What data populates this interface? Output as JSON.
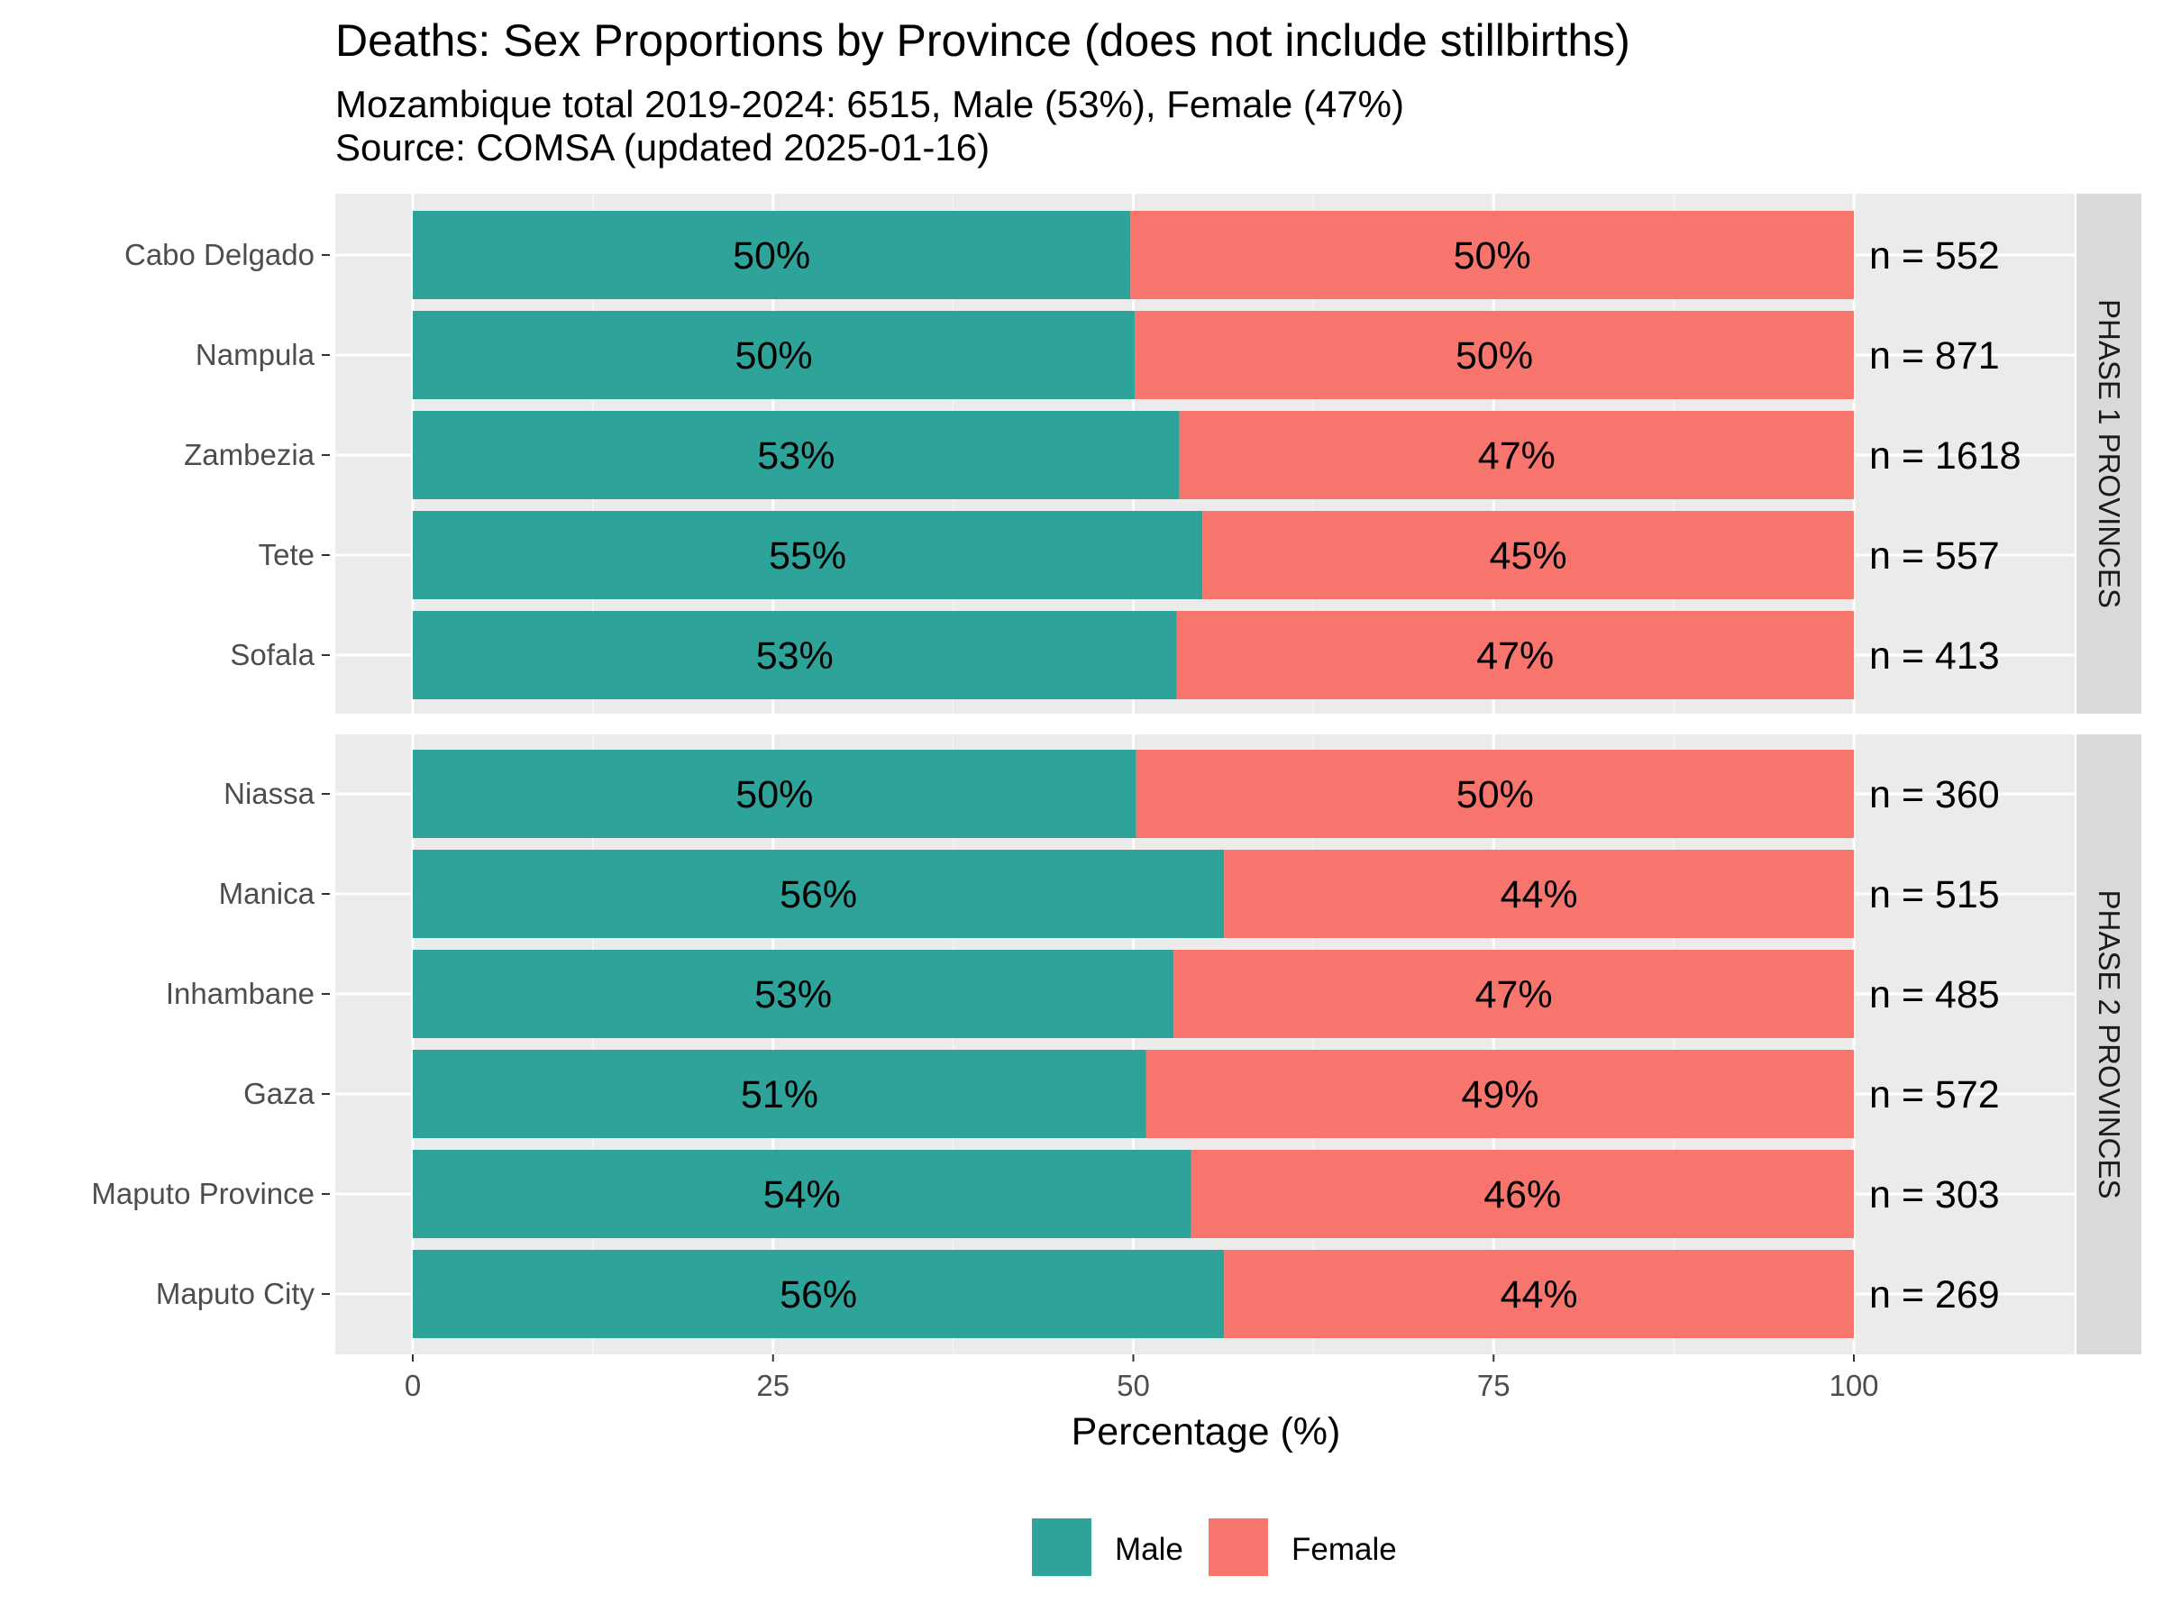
{
  "chart_data": {
    "type": "bar",
    "orientation": "horizontal",
    "stacked": true,
    "title": "Deaths: Sex Proportions by Province (does not include stillbirths)",
    "subtitle_lines": [
      "Mozambique total 2019-2024: 6515, Male (53%), Female (47%)",
      "Source: COMSA (updated 2025-01-16)"
    ],
    "xlabel": "Percentage (%)",
    "ylabel": "",
    "xlim": [
      0,
      100
    ],
    "xticks": [
      0,
      25,
      50,
      75,
      100
    ],
    "grid": true,
    "legend_position": "bottom",
    "colors": {
      "Male": "#2ea39a",
      "Female": "#f8756d"
    },
    "series_names": [
      "Male",
      "Female"
    ],
    "n_prefix": "n = ",
    "facets": [
      {
        "label": "PHASE  1  PROVINCES",
        "rows": [
          {
            "province": "Cabo Delgado",
            "male": 49.8,
            "female": 50.2,
            "male_label": "50%",
            "female_label": "50%",
            "n": 552
          },
          {
            "province": "Nampula",
            "male": 50.1,
            "female": 49.9,
            "male_label": "50%",
            "female_label": "50%",
            "n": 871
          },
          {
            "province": "Zambezia",
            "male": 53.2,
            "female": 46.8,
            "male_label": "53%",
            "female_label": "47%",
            "n": 1618
          },
          {
            "province": "Tete",
            "male": 54.8,
            "female": 45.2,
            "male_label": "55%",
            "female_label": "45%",
            "n": 557
          },
          {
            "province": "Sofala",
            "male": 53.0,
            "female": 47.0,
            "male_label": "53%",
            "female_label": "47%",
            "n": 413
          }
        ]
      },
      {
        "label": "PHASE  2  PROVINCES",
        "rows": [
          {
            "province": "Niassa",
            "male": 50.2,
            "female": 49.8,
            "male_label": "50%",
            "female_label": "50%",
            "n": 360
          },
          {
            "province": "Manica",
            "male": 56.3,
            "female": 43.7,
            "male_label": "56%",
            "female_label": "44%",
            "n": 515
          },
          {
            "province": "Inhambane",
            "male": 52.8,
            "female": 47.2,
            "male_label": "53%",
            "female_label": "47%",
            "n": 485
          },
          {
            "province": "Gaza",
            "male": 50.9,
            "female": 49.1,
            "male_label": "51%",
            "female_label": "49%",
            "n": 572
          },
          {
            "province": "Maputo Province",
            "male": 54.0,
            "female": 46.0,
            "male_label": "54%",
            "female_label": "46%",
            "n": 303
          },
          {
            "province": "Maputo City",
            "male": 56.3,
            "female": 43.7,
            "male_label": "56%",
            "female_label": "44%",
            "n": 269
          }
        ]
      }
    ]
  }
}
